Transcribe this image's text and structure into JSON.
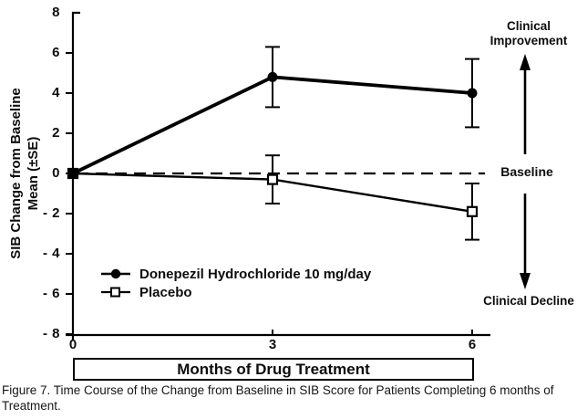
{
  "figure": {
    "caption": "Figure 7. Time Course of the Change from Baseline in SIB Score for Patients Completing 6 months of Treatment."
  },
  "chart_data": {
    "type": "line",
    "title": "",
    "xlabel": "Months of Drug Treatment",
    "ylabel": "SIB Change from Baseline Mean (±SE)",
    "ylabel_line1": "SIB Change from Baseline",
    "ylabel_line2": "Mean (±SE)",
    "x": [
      0,
      3,
      6
    ],
    "xtick_labels": [
      "0",
      "3",
      "6"
    ],
    "ylim": [
      -8,
      8
    ],
    "yticks": [
      8,
      6,
      4,
      2,
      0,
      -2,
      -4,
      -6,
      -8
    ],
    "ytick_labels": [
      "8",
      "6",
      "4",
      "2",
      "0",
      "- 2",
      "- 4",
      "- 6",
      "- 8"
    ],
    "grid": false,
    "baseline_y": 0,
    "baseline_style": "dashed",
    "legend_position": "lower-left-inside",
    "ink_color": "#000000",
    "background_color": "#ffffff",
    "series": [
      {
        "name": "Donepezil Hydrochloride 10 mg/day",
        "marker": "filled-circle",
        "line_weight": "thick",
        "values": [
          0,
          4.8,
          4.0
        ],
        "se": [
          0,
          1.5,
          1.7
        ]
      },
      {
        "name": "Placebo",
        "marker": "open-square",
        "line_weight": "thin",
        "values": [
          0,
          -0.3,
          -1.9
        ],
        "se": [
          0,
          1.2,
          1.4
        ]
      }
    ],
    "annotations": {
      "improvement": "Clinical Improvement",
      "baseline": "Baseline",
      "decline": "Clinical Decline"
    }
  }
}
